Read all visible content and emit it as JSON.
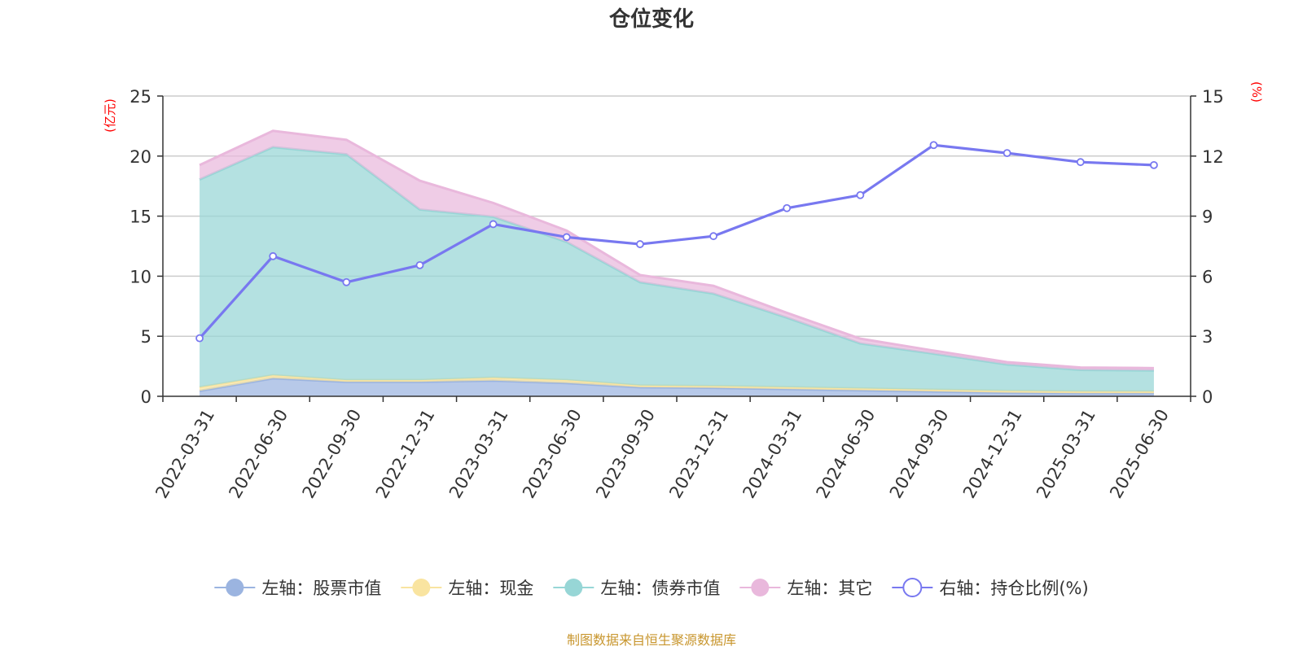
{
  "title": "仓位变化",
  "source": "制图数据来自恒生聚源数据库",
  "chart_data": {
    "type": "area",
    "title": "仓位变化",
    "x": [
      "2022-03-31",
      "2022-06-30",
      "2022-09-30",
      "2022-12-31",
      "2023-03-31",
      "2023-06-30",
      "2023-09-30",
      "2023-12-31",
      "2024-03-31",
      "2024-06-30",
      "2024-09-30",
      "2024-12-31",
      "2025-03-31",
      "2025-06-30"
    ],
    "y_left": {
      "label": "(亿元)",
      "range": [
        0,
        25
      ],
      "ticks": [
        0,
        5,
        10,
        15,
        20,
        25
      ]
    },
    "y_right": {
      "label": "(%)",
      "range": [
        0,
        15
      ],
      "ticks": [
        0,
        3,
        6,
        9,
        12,
        15
      ]
    },
    "stacked": true,
    "grid": true,
    "legend_position": "bottom",
    "series": [
      {
        "name": "左轴：股票市值",
        "axis": "left",
        "type": "area",
        "color": "#9bb4e0",
        "values": [
          0.45,
          1.5,
          1.2,
          1.2,
          1.3,
          1.1,
          0.75,
          0.7,
          0.6,
          0.5,
          0.4,
          0.3,
          0.25,
          0.25
        ]
      },
      {
        "name": "左轴：现金",
        "axis": "left",
        "type": "area",
        "color": "#f9e4a0",
        "values": [
          0.3,
          0.25,
          0.15,
          0.15,
          0.25,
          0.25,
          0.15,
          0.15,
          0.15,
          0.15,
          0.15,
          0.15,
          0.15,
          0.15
        ]
      },
      {
        "name": "左轴：债券市值",
        "axis": "left",
        "type": "area",
        "color": "#97d6d6",
        "values": [
          17.3,
          19.0,
          18.8,
          14.2,
          13.4,
          11.5,
          8.6,
          7.7,
          5.8,
          3.75,
          3.0,
          2.2,
          1.8,
          1.75
        ]
      },
      {
        "name": "左轴：其它",
        "axis": "left",
        "type": "area",
        "color": "#e9b8dc",
        "values": [
          1.2,
          1.35,
          1.2,
          2.4,
          1.15,
          0.95,
          0.6,
          0.65,
          0.4,
          0.4,
          0.25,
          0.2,
          0.2,
          0.2
        ]
      },
      {
        "name": "右轴：持仓比例(%)",
        "axis": "right",
        "type": "line",
        "color": "#7878f0",
        "values": [
          2.9,
          7.0,
          5.7,
          6.55,
          8.6,
          7.95,
          7.6,
          8.0,
          9.4,
          10.05,
          12.55,
          12.15,
          11.7,
          11.55
        ]
      }
    ]
  }
}
